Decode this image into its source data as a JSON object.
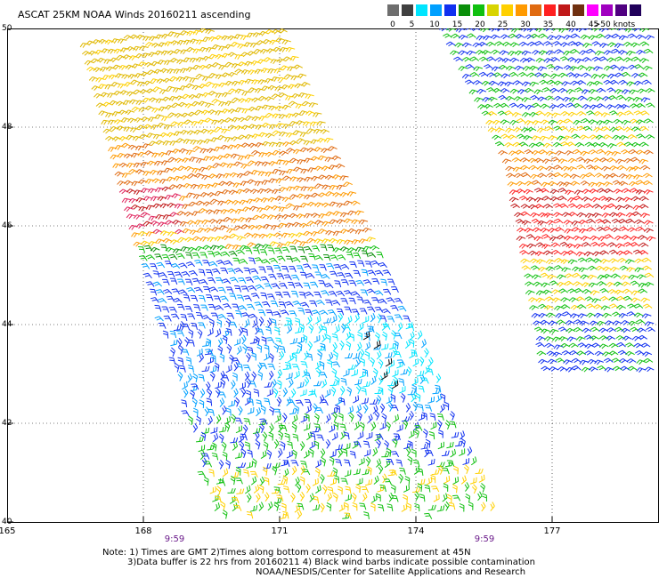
{
  "title": "ASCAT 25KM NOAA Winds 20160211 ascending",
  "legend": {
    "labels": [
      "0",
      "5",
      "10",
      "15",
      "20",
      "25",
      "30",
      "35",
      "40",
      "45",
      ">50 knots"
    ],
    "colors": [
      "#6e6e6e",
      "#404040",
      "#00e5ff",
      "#00a0ff",
      "#1030f0",
      "#0a8f0a",
      "#10c010",
      "#d8d400",
      "#ffd000",
      "#ff9a00",
      "#e06a10",
      "#ff2020",
      "#c01818",
      "#703010",
      "#ff00ff",
      "#a000c0",
      "#500080",
      "#20005a"
    ]
  },
  "axes": {
    "lat_labels": [
      "50",
      "48",
      "46",
      "44",
      "42",
      "40"
    ],
    "lon_labels": [
      "165",
      "168",
      "171",
      "174",
      "177"
    ],
    "times": [
      "9:59",
      "9:59"
    ]
  },
  "notes": {
    "line1": "Note: 1) Times are GMT 2)Times along bottom correspond to measurement at 45N",
    "line2": "3)Data buffer is 22 hrs from 20160211 4) Black wind barbs indicate possible contamination",
    "line3": "NOAA/NESDIS/Center for Satellite Applications and Research"
  }
}
